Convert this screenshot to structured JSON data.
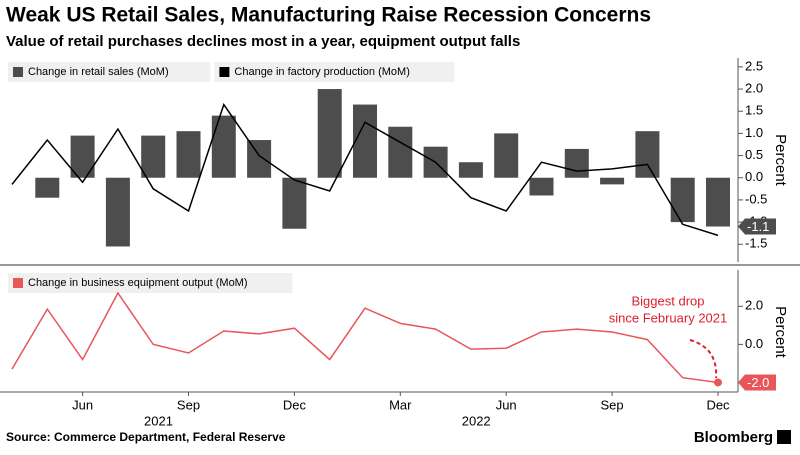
{
  "title": "Weak US Retail Sales, Manufacturing Raise Recession Concerns",
  "subtitle": "Value of retail purchases declines most in a year, equipment output falls",
  "source": "Source: Commerce Department, Federal Reserve",
  "brand": "Bloomberg",
  "chart_data": [
    {
      "type": "bar",
      "ylabel": "Percent",
      "ylim": [
        -1.9,
        2.7
      ],
      "yticks": [
        2.5,
        {
          "value": 2.0,
          "label": "2.0"
        },
        1.5,
        {
          "value": 1.0,
          "label": "1.0"
        },
        0.5,
        {
          "value": 0.0,
          "label": "0.0"
        },
        -0.5,
        {
          "value": -1.0,
          "label": "-1.0"
        },
        -1.5
      ],
      "series": [
        {
          "name": "Change in retail sales (MoM)",
          "type": "bar",
          "color": "#4d4d4d",
          "values": [
            null,
            -0.45,
            0.95,
            -1.55,
            0.95,
            1.05,
            1.4,
            0.85,
            -1.15,
            2.0,
            1.65,
            1.15,
            0.7,
            0.35,
            1.0,
            -0.4,
            0.65,
            -0.15,
            1.05,
            -1.0,
            -1.1
          ],
          "last_label": "-1.1"
        },
        {
          "name": "Change in factory production (MoM)",
          "type": "line",
          "color": "#000000",
          "values": [
            -0.15,
            0.85,
            -0.1,
            1.1,
            -0.25,
            -0.75,
            1.65,
            0.5,
            -0.05,
            -0.3,
            1.25,
            0.8,
            0.35,
            -0.45,
            -0.75,
            0.35,
            0.15,
            0.2,
            0.3,
            -1.05,
            -1.3
          ]
        }
      ]
    },
    {
      "type": "line",
      "ylabel": "Percent",
      "ylim": [
        -2.5,
        3.8
      ],
      "yticks": [
        {
          "value": 2.0,
          "label": "2.0"
        },
        {
          "value": 0.0,
          "label": "0.0"
        },
        {
          "value": -2.0,
          "label": "-2.0"
        }
      ],
      "categories": [
        null,
        null,
        "Jun",
        null,
        null,
        "Sep",
        null,
        null,
        "Dec",
        null,
        null,
        "Mar",
        null,
        null,
        "Jun",
        null,
        null,
        "Sep",
        null,
        null,
        "Dec"
      ],
      "years": [
        "2021",
        "2022"
      ],
      "annotation": [
        "Biggest drop",
        "since February 2021"
      ],
      "series": [
        {
          "name": "Change in business equipment output (MoM)",
          "color": "#e8565a",
          "values": [
            -1.3,
            1.85,
            -0.8,
            2.7,
            0.0,
            -0.45,
            0.7,
            0.55,
            0.85,
            -0.8,
            1.9,
            1.1,
            0.8,
            -0.25,
            -0.2,
            0.65,
            0.8,
            0.65,
            0.25,
            -1.75,
            -2.0
          ],
          "last_label": "-2.0"
        }
      ]
    }
  ]
}
